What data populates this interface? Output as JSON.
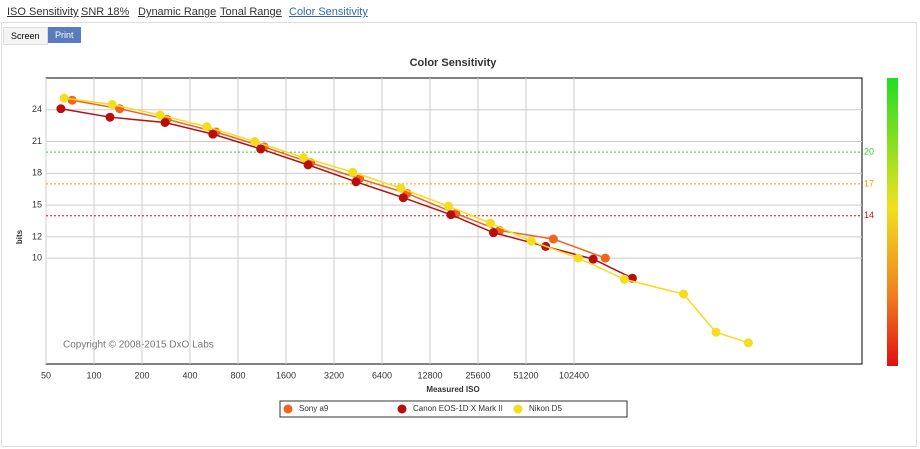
{
  "tabs": [
    "ISO Sensitivity",
    "SNR 18%",
    "Dynamic Range",
    "Tonal Range",
    "Color Sensitivity"
  ],
  "buttons": [
    "Screen",
    "Print"
  ],
  "chart_data": {
    "type": "line",
    "title": "Color Sensitivity",
    "x_label": "Measured ISO",
    "y_label": "bits",
    "annotation": "Copyright © 2008-2015 DxO Labs",
    "xscale": "log",
    "xlim": [
      50,
      6553600
    ],
    "xticks": [
      50,
      100,
      200,
      400,
      800,
      1600,
      3200,
      6400,
      12800,
      25600,
      51200,
      102400
    ],
    "ylim": [
      0,
      27
    ],
    "yticks": [
      10,
      12,
      15,
      18,
      21,
      24
    ],
    "grid": true,
    "reference_lines": [
      {
        "value": 20,
        "color": "#33cc33"
      },
      {
        "value": 17,
        "color": "#ff9900"
      },
      {
        "value": 14,
        "color": "#dd1111"
      }
    ],
    "series": [
      {
        "name": "Sony a9",
        "color": "#f0641e",
        "x": [
          73,
          145,
          287,
          582,
          1166,
          2285,
          4629,
          9200,
          18600,
          35000,
          76000,
          161000
        ],
        "values": [
          24.9,
          24.1,
          23.1,
          21.9,
          20.5,
          19.0,
          17.5,
          16.1,
          14.2,
          12.6,
          11.8,
          10.0
        ]
      },
      {
        "name": "Canon  EOS-1D X Mark II",
        "color": "#b80e0e",
        "x": [
          62,
          126,
          279,
          556,
          1110,
          2200,
          4400,
          8700,
          17300,
          32000,
          68000,
          135000,
          238000
        ],
        "values": [
          24.1,
          23.3,
          22.8,
          21.7,
          20.3,
          18.8,
          17.2,
          15.7,
          14.1,
          12.4,
          11.1,
          9.9,
          8.1
        ]
      },
      {
        "name": "Nikon D5",
        "color": "#f5dc1e",
        "x": [
          65,
          130,
          260,
          510,
          1020,
          2060,
          4190,
          8400,
          16700,
          30600,
          55300,
          109000,
          212000,
          498000,
          796000,
          1270000
        ],
        "values": [
          25.1,
          24.5,
          23.5,
          22.4,
          21.0,
          19.5,
          18.1,
          16.6,
          14.9,
          13.3,
          11.6,
          10.0,
          8.0,
          6.6,
          3.0,
          2.0
        ]
      }
    ]
  }
}
